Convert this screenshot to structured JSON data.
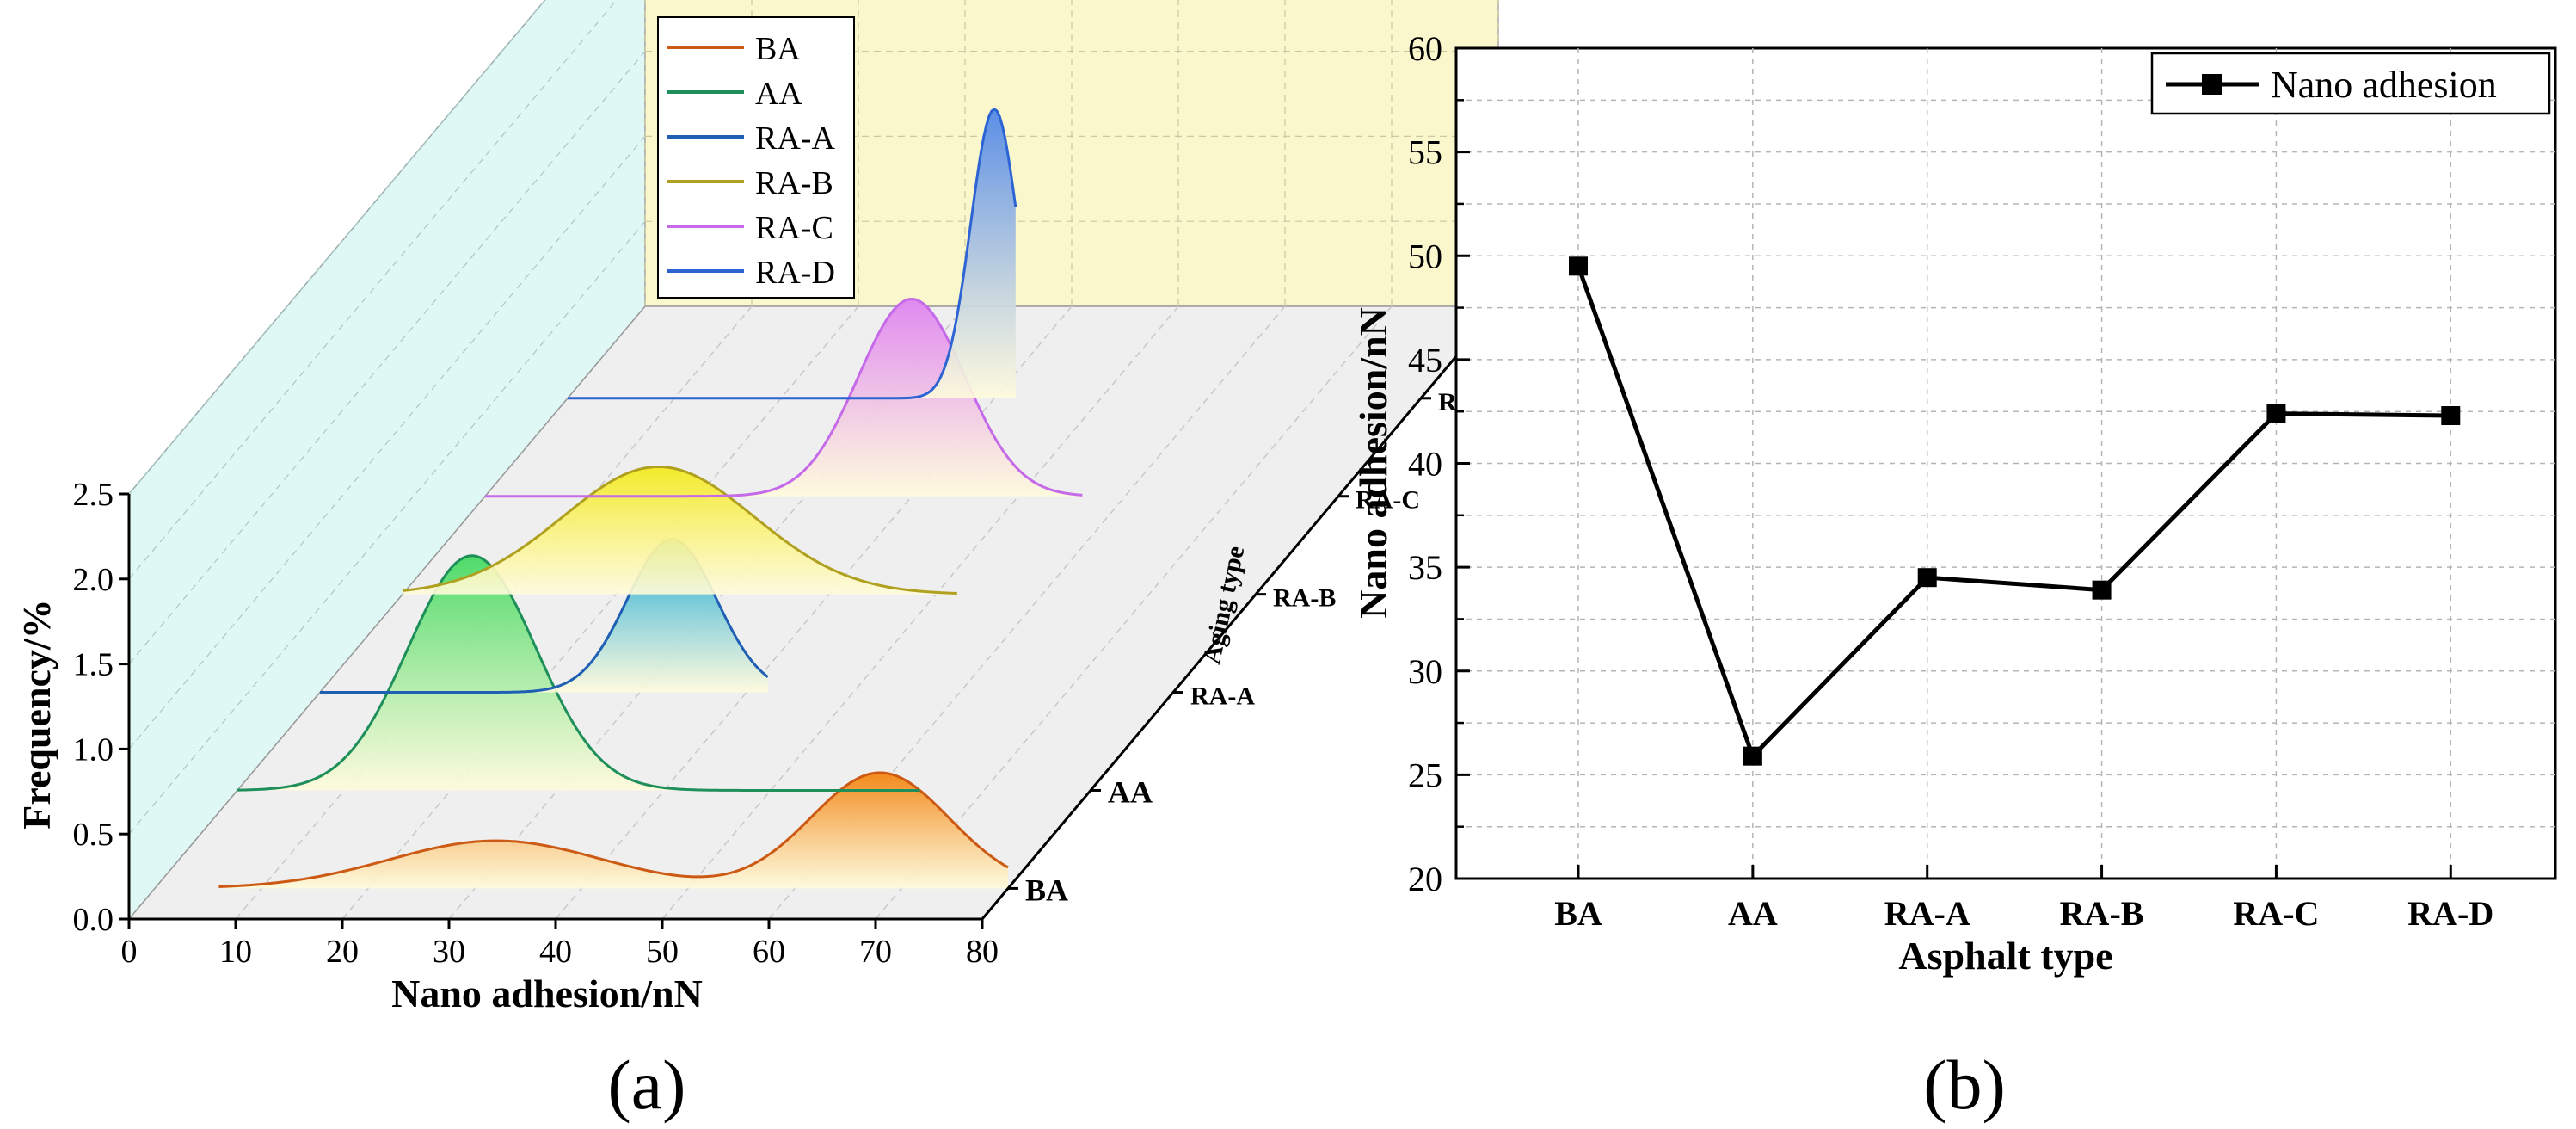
{
  "chart_data": [
    {
      "type": "line",
      "panel_label": "(a)",
      "xlabel": "Nano adhesion/nN",
      "ylabel": "Frequency/%",
      "zlabel": "Aging type",
      "xlim": [
        0,
        80
      ],
      "ylim": [
        0,
        2.5
      ],
      "x_ticks": [
        "0",
        "10",
        "20",
        "30",
        "40",
        "50",
        "60",
        "70",
        "80"
      ],
      "y_ticks": [
        "0.0",
        "0.5",
        "1.0",
        "1.5",
        "2.0",
        "2.5"
      ],
      "depth_categories": [
        "BA",
        "AA",
        "RA-A",
        "RA-B",
        "RA-C",
        "RA-D"
      ],
      "legend_position": "top-left",
      "series": [
        {
          "name": "BA",
          "color": "#cc5a14",
          "fill_top": "#f28a1c",
          "peaks": [
            {
              "x": 32,
              "h": 0.28,
              "w": 10
            },
            {
              "x": 68,
              "h": 0.68,
              "w": 6.5
            }
          ],
          "x_range": [
            6,
            80
          ]
        },
        {
          "name": "AA",
          "color": "#1e8f5a",
          "fill_top": "#4fdb6a",
          "peaks": [
            {
              "x": 22,
              "h": 1.38,
              "w": 6
            }
          ],
          "x_range": [
            0,
            64
          ]
        },
        {
          "name": "RA-A",
          "color": "#1e5fb4",
          "fill_top": "#19a8d8",
          "peaks": [
            {
              "x": 33,
              "h": 0.9,
              "w": 4.2
            }
          ],
          "x_range": [
            0,
            42
          ]
        },
        {
          "name": "RA-B",
          "color": "#b0a020",
          "fill_top": "#f3ea2a",
          "peaks": [
            {
              "x": 24,
              "h": 0.75,
              "w": 9
            }
          ],
          "x_range": [
            0,
            52
          ]
        },
        {
          "name": "RA-C",
          "color": "#c56ae8",
          "fill_top": "#e089f0",
          "peaks": [
            {
              "x": 40,
              "h": 1.16,
              "w": 5
            }
          ],
          "x_range": [
            0,
            56
          ]
        },
        {
          "name": "RA-D",
          "color": "#2c64d4",
          "fill_top": "#5b8ee6",
          "peaks": [
            {
              "x": 40,
              "h": 1.7,
              "w": 2.2
            }
          ],
          "x_range": [
            0,
            42
          ]
        }
      ]
    },
    {
      "type": "line",
      "panel_label": "(b)",
      "xlabel": "Asphalt type",
      "ylabel": "Nano adhesion/nN",
      "ylim": [
        20,
        60
      ],
      "y_ticks": [
        "20",
        "25",
        "30",
        "35",
        "40",
        "45",
        "50",
        "55",
        "60"
      ],
      "categories": [
        "BA",
        "AA",
        "RA-A",
        "RA-B",
        "RA-C",
        "RA-D"
      ],
      "grid": true,
      "legend_position": "top-right",
      "series": [
        {
          "name": "Nano adhesion",
          "values": [
            49.5,
            25.9,
            34.5,
            33.9,
            42.4,
            42.3
          ],
          "marker": "square",
          "color": "#000000"
        }
      ]
    }
  ]
}
